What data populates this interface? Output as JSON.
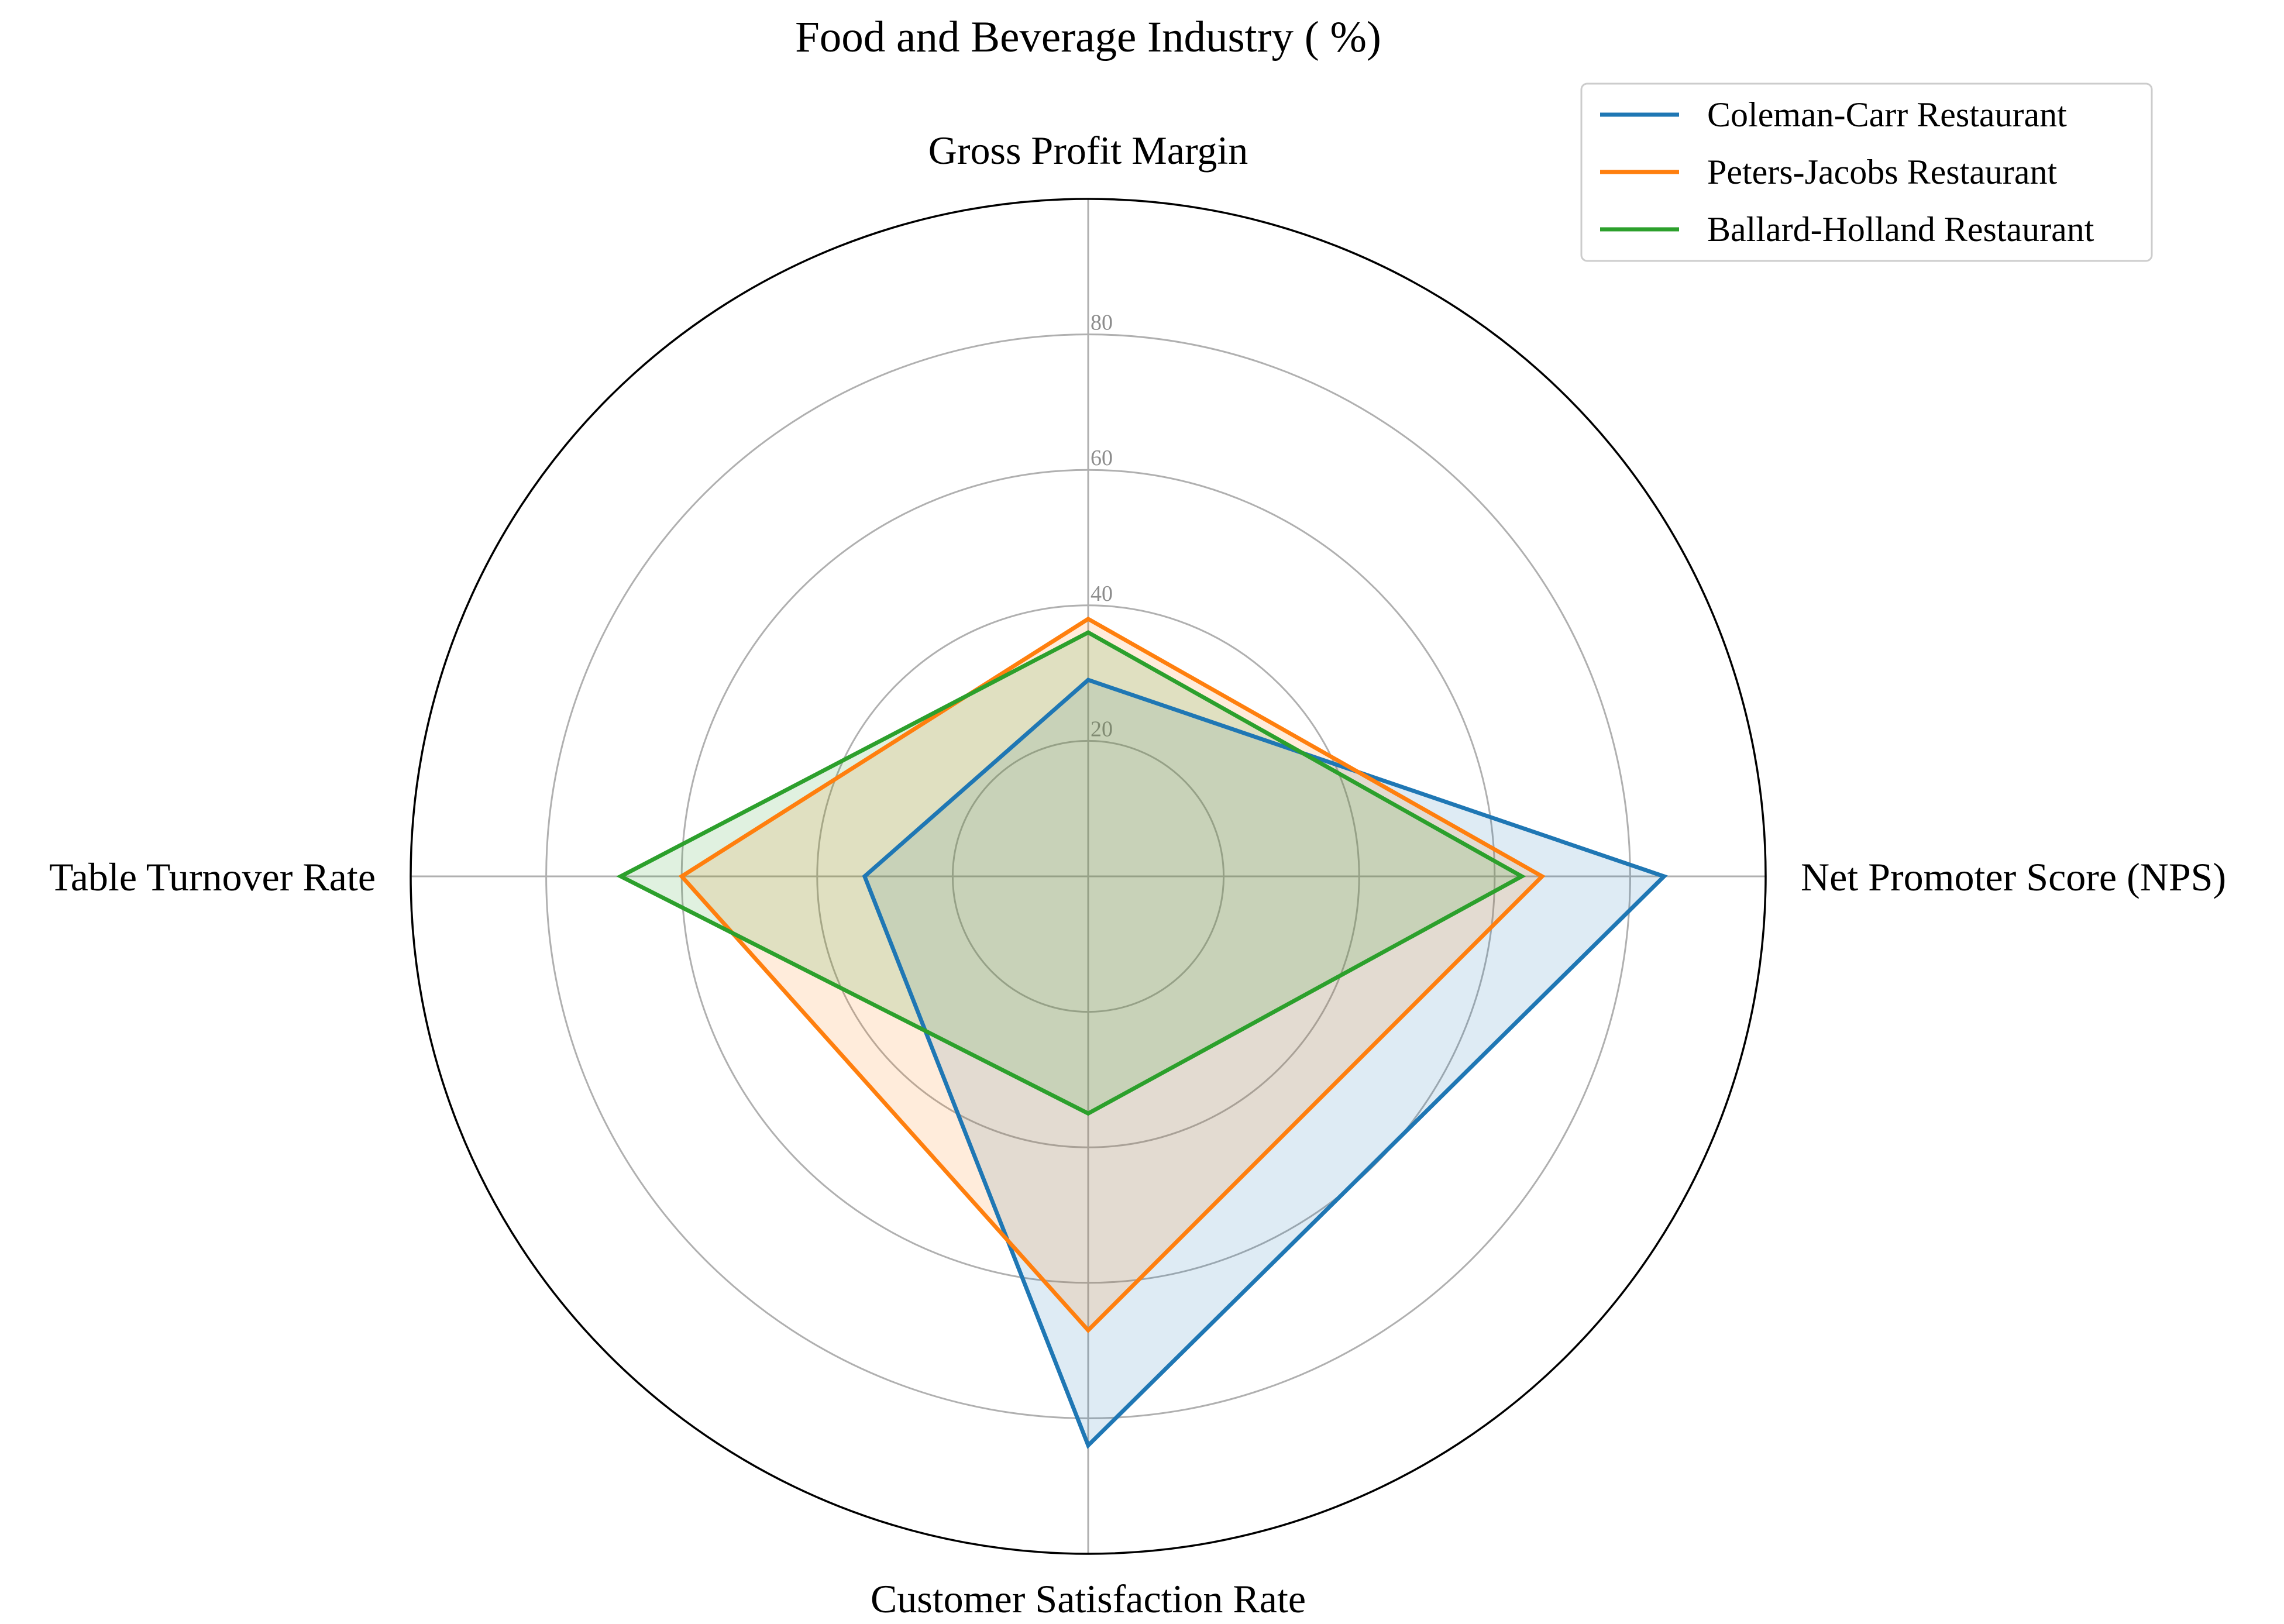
{
  "chart_data": {
    "type": "radar",
    "title": "Food and Beverage Industry ( %)",
    "axes": [
      "Gross Profit Margin",
      "Net Promoter Score (NPS)",
      "Customer Satisfaction Rate",
      "Table Turnover Rate"
    ],
    "rmax": 100,
    "ticks": [
      20,
      40,
      60,
      80
    ],
    "grid": true,
    "legend_position": "top-right",
    "series": [
      {
        "name": "Coleman-Carr Restaurant",
        "color": "#1f77b4",
        "values": [
          29,
          85,
          84,
          33
        ]
      },
      {
        "name": "Peters-Jacobs Restaurant",
        "color": "#ff7f0e",
        "values": [
          38,
          67,
          67,
          60
        ]
      },
      {
        "name": "Ballard-Holland Restaurant",
        "color": "#2ca02c",
        "values": [
          36,
          64,
          35,
          69
        ]
      }
    ]
  }
}
